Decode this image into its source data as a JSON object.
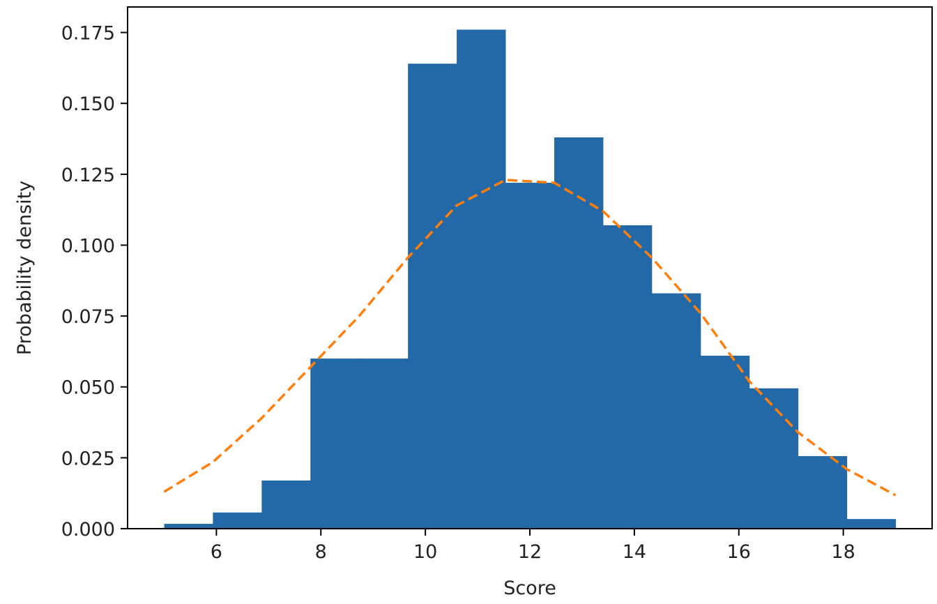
{
  "chart_data": {
    "type": "histogram",
    "xlabel": "Score",
    "ylabel": "Probability density",
    "bins": [
      5,
      5.933,
      6.867,
      7.8,
      8.733,
      9.667,
      10.6,
      11.533,
      12.467,
      13.4,
      14.333,
      15.267,
      16.2,
      17.133,
      18.067,
      19
    ],
    "values": [
      0.0017,
      0.0057,
      0.017,
      0.06,
      0.06,
      0.164,
      0.176,
      0.122,
      0.138,
      0.107,
      0.083,
      0.061,
      0.0495,
      0.0256,
      0.0034
    ],
    "color": "#2369a8",
    "overlay": {
      "type": "line",
      "x": [
        5,
        5.933,
        6.867,
        7.8,
        8.733,
        9.667,
        10.6,
        11.533,
        12.467,
        13.4,
        14.333,
        15.267,
        16.2,
        17.133,
        18.067,
        19
      ],
      "values": [
        0.013,
        0.0235,
        0.039,
        0.057,
        0.075,
        0.0956,
        0.114,
        0.123,
        0.122,
        0.112,
        0.0956,
        0.076,
        0.052,
        0.034,
        0.021,
        0.0118
      ],
      "color": "#ff7f0e",
      "linestyle": "dashed"
    },
    "xlim": [
      4.3,
      19.7
    ],
    "xticks": [
      6,
      8,
      10,
      12,
      14,
      16,
      18
    ],
    "ylim": [
      0,
      0.184
    ],
    "yticks": [
      {
        "value": 0,
        "label": "0.000"
      },
      {
        "value": 0.025,
        "label": "0.025"
      },
      {
        "value": 0.05,
        "label": "0.050"
      },
      {
        "value": 0.075,
        "label": "0.075"
      },
      {
        "value": 0.1,
        "label": "0.100"
      },
      {
        "value": 0.125,
        "label": "0.125"
      },
      {
        "value": 0.15,
        "label": "0.150"
      },
      {
        "value": 0.175,
        "label": "0.175"
      }
    ],
    "grid": false
  }
}
